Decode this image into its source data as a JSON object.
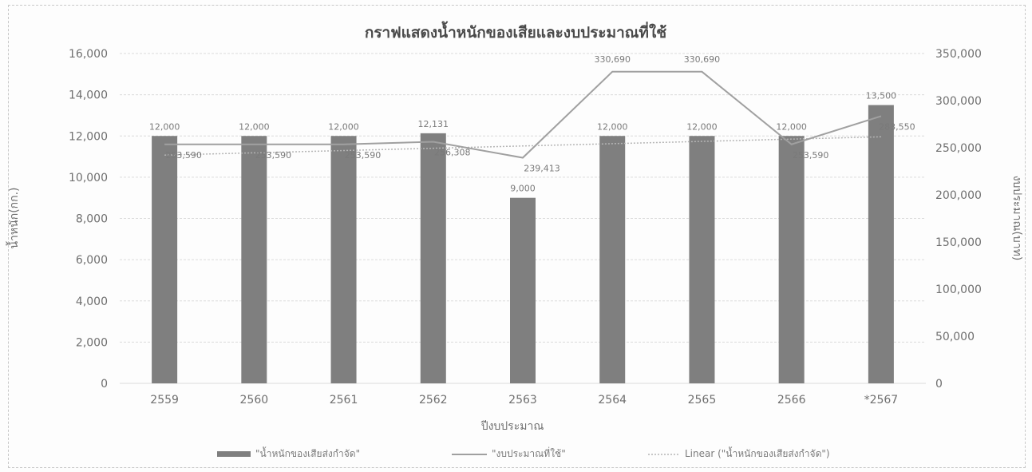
{
  "chart_data": {
    "type": "bar",
    "title": "กราฟแสดงน้ำหนักของเสียและงบประมาณที่ใช้",
    "xlabel": "ปีงบประมาณ",
    "ylabel": "น้ำหนัก(กก.)",
    "y2label": "งบประมาณ(บาท)",
    "categories": [
      "2559",
      "2560",
      "2561",
      "2562",
      "2563",
      "2564",
      "2565",
      "2566",
      "*2567"
    ],
    "ylim": [
      0,
      16000
    ],
    "y2lim": [
      0,
      350000
    ],
    "yticks": [
      "0",
      "2,000",
      "4,000",
      "6,000",
      "8,000",
      "10,000",
      "12,000",
      "14,000",
      "16,000"
    ],
    "y2ticks": [
      "0",
      "50,000",
      "100,000",
      "150,000",
      "200,000",
      "250,000",
      "300,000",
      "350,000"
    ],
    "grid": true,
    "legend_position": "bottom",
    "series": [
      {
        "name": "\"น้ำหนักของเสียส่งกำจัด\"",
        "kind": "bar",
        "axis": "left",
        "values": [
          12000,
          12000,
          12000,
          12131,
          9000,
          12000,
          12000,
          12000,
          13500
        ],
        "labels": [
          "12,000",
          "12,000",
          "12,000",
          "12,131",
          "9,000",
          "12,000",
          "12,000",
          "12,000",
          "13,500"
        ],
        "color": "#7f7f7f"
      },
      {
        "name": "\"งบประมาณที่ใช้\"",
        "kind": "line",
        "axis": "right",
        "values": [
          253590,
          253590,
          253590,
          256308,
          239413,
          330690,
          330690,
          253590,
          283550
        ],
        "labels": [
          "253,590",
          "253,590",
          "253,590",
          "256,308",
          "239,413",
          "330,690",
          "330,690",
          "253,590",
          "283,550"
        ],
        "color": "#a0a0a0"
      },
      {
        "name": "Linear (\"น้ำหนักของเสียส่งกำจัด\")",
        "kind": "trendline",
        "axis": "left",
        "values": [
          11071,
          11182,
          11293,
          11404,
          11515,
          11626,
          11737,
          11848,
          11959
        ],
        "color": "#b5b5b5"
      }
    ]
  }
}
